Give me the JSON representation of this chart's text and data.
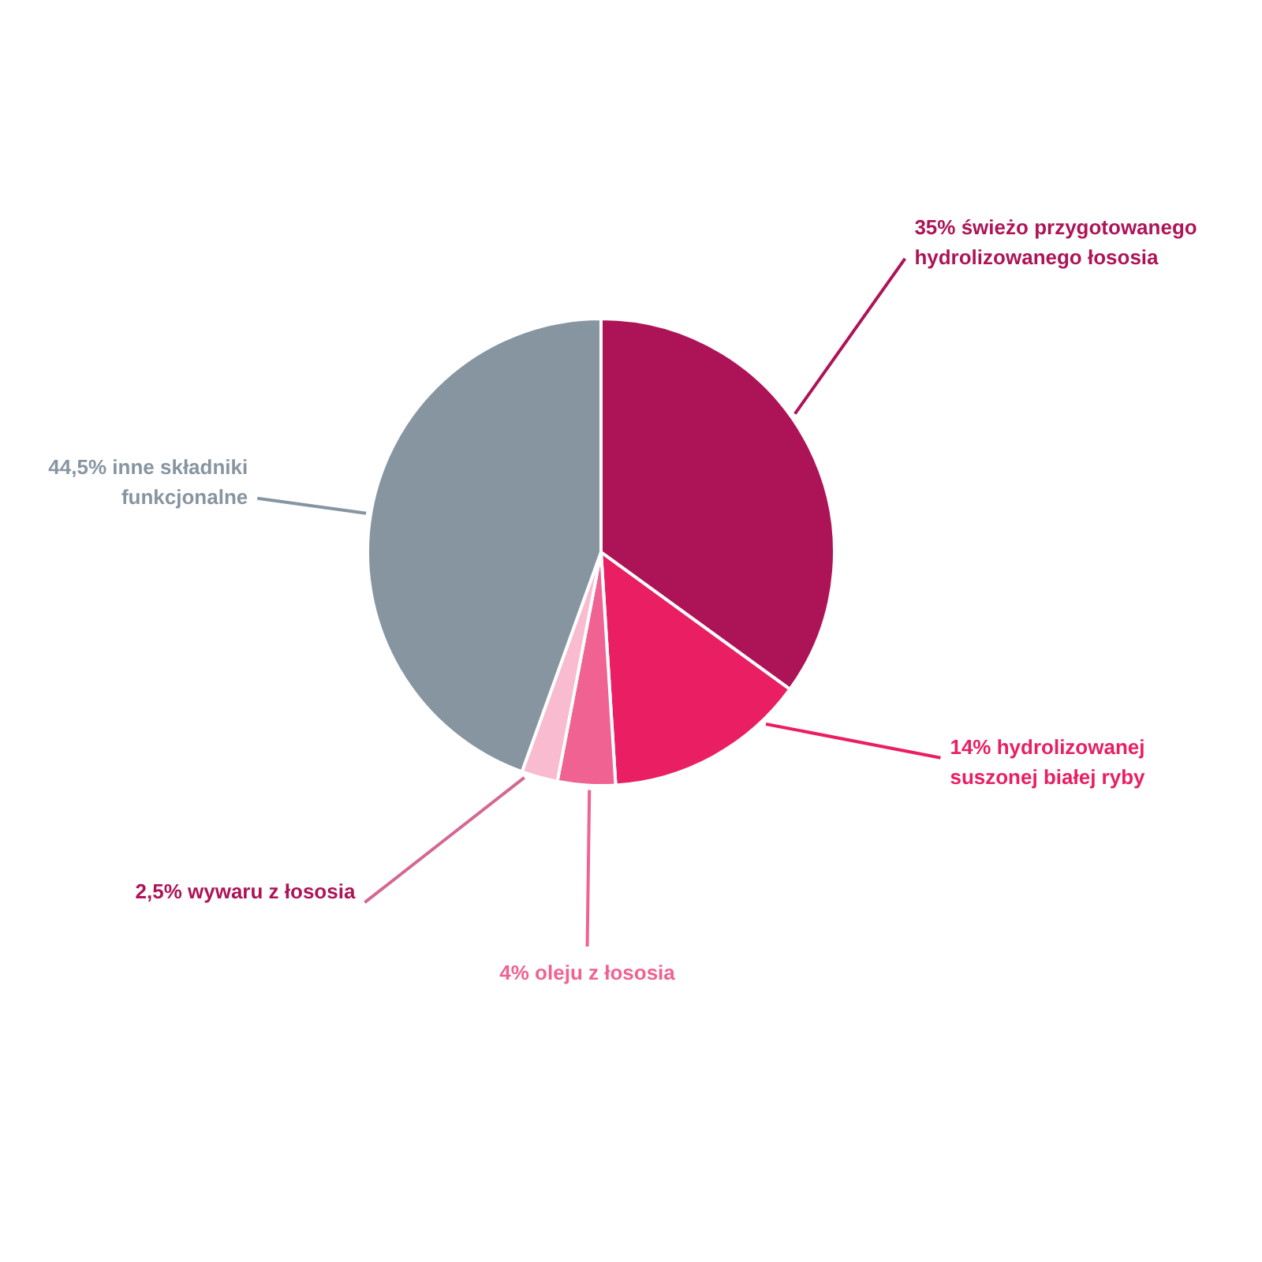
{
  "chart_data": {
    "type": "pie",
    "categories": [
      "świeżo przygotowanego\nhydrolizowanego łososia",
      "hydrolizowanej\nsuszonej białej ryby",
      "oleju z łososia",
      "wywaru z łososia",
      "inne składniki\nfunkcjonalne"
    ],
    "values": [
      35,
      14,
      4,
      2.5,
      44.5
    ],
    "value_labels": [
      "35%",
      "14%",
      "4%",
      "2,5%",
      "44,5%"
    ],
    "colors": [
      "#ad1457",
      "#e91e63",
      "#f06292",
      "#f8bbd0",
      "#8795a1"
    ]
  }
}
